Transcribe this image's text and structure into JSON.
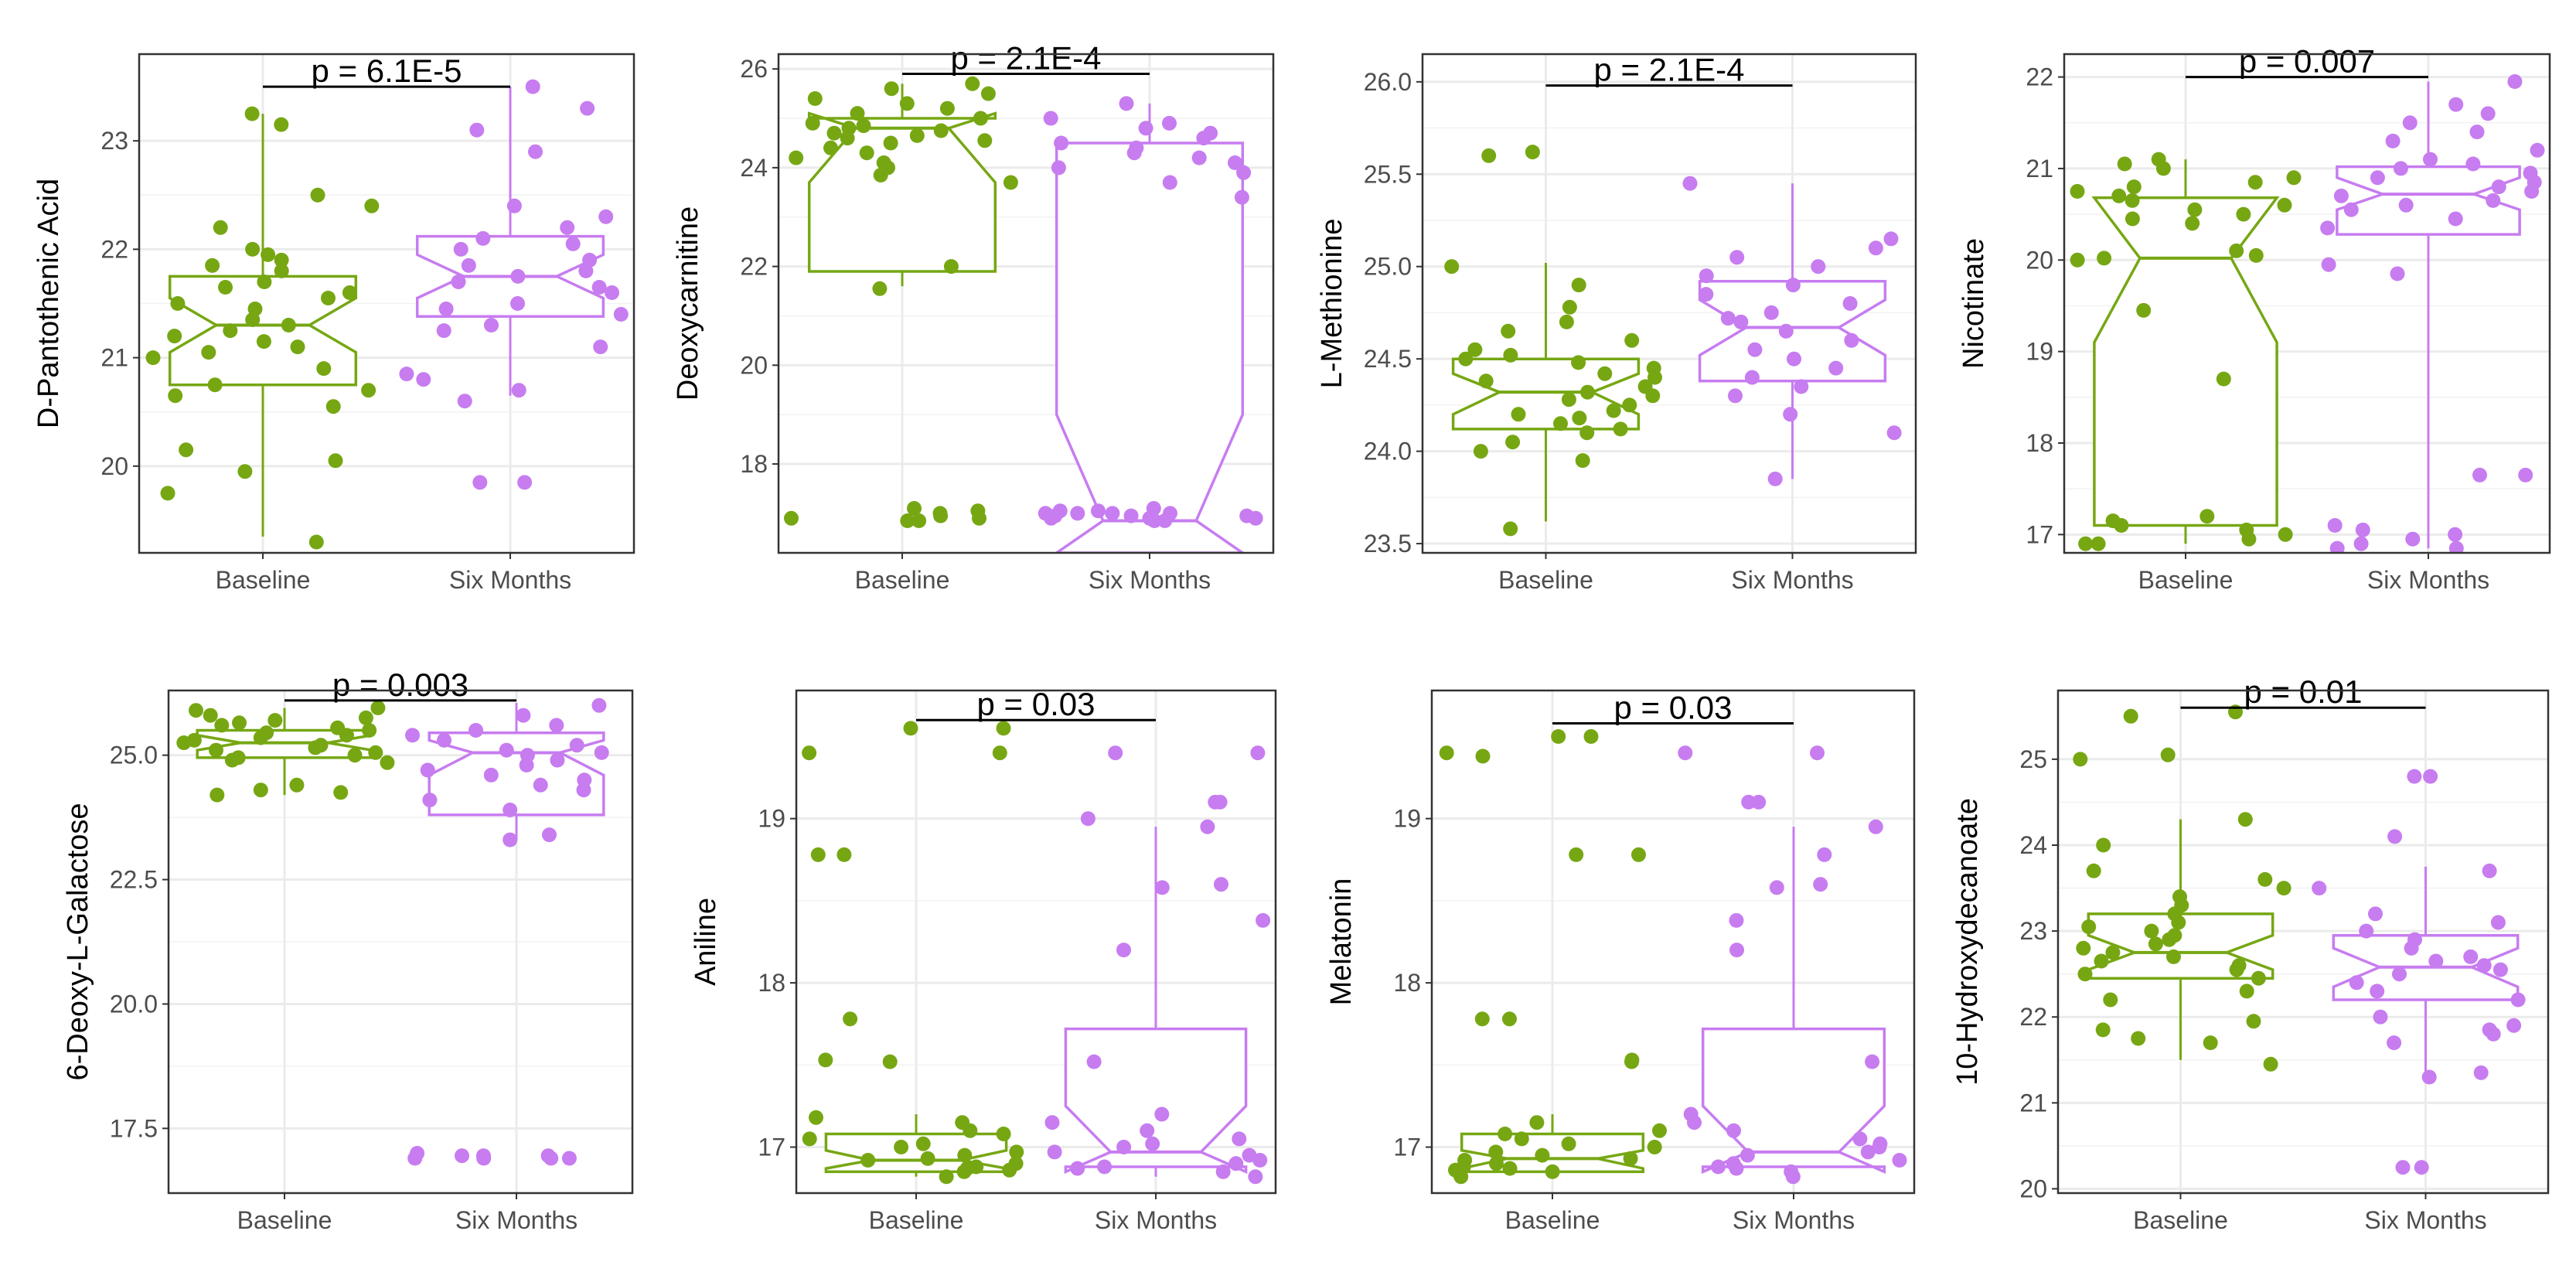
{
  "colors": {
    "baseline": "#76a713",
    "six_months": "#c77cf0",
    "grid": "#ebebeb",
    "frame": "#333333",
    "tick_text": "#4d4d4d"
  },
  "chart_data": [
    {
      "type": "boxplot",
      "title": "",
      "ylabel": "D-Pantothenic Acid",
      "xlabel": "",
      "categories": [
        "Baseline",
        "Six Months"
      ],
      "ylim": [
        19.2,
        23.8
      ],
      "yticks": [
        20,
        21,
        22,
        23
      ],
      "tick_labels": [
        "20",
        "21",
        "22",
        "23"
      ],
      "pvalue_label": "p = 6.1E-5",
      "pvalue_y": 23.5,
      "boxes": [
        {
          "name": "Baseline",
          "whisker_low": 19.35,
          "q1": 20.75,
          "median": 21.3,
          "q3": 21.75,
          "whisker_high": 23.25,
          "notch_low": 21.05,
          "notch_high": 21.55
        },
        {
          "name": "Six Months",
          "whisker_low": 20.65,
          "q1": 21.38,
          "median": 21.75,
          "q3": 22.12,
          "whisker_high": 23.5,
          "notch_low": 21.55,
          "notch_high": 21.95
        }
      ],
      "points": [
        {
          "group": "Baseline",
          "values": [
            19.3,
            19.75,
            19.95,
            20.05,
            20.15,
            20.55,
            20.65,
            20.7,
            20.75,
            20.9,
            21.0,
            21.05,
            21.1,
            21.15,
            21.2,
            21.25,
            21.3,
            21.35,
            21.45,
            21.5,
            21.55,
            21.6,
            21.65,
            21.7,
            21.8,
            21.85,
            21.9,
            21.95,
            22.0,
            22.2,
            22.4,
            22.5,
            23.15,
            23.25
          ]
        },
        {
          "group": "Six Months",
          "values": [
            19.85,
            19.85,
            20.6,
            20.7,
            20.8,
            20.85,
            21.1,
            21.25,
            21.3,
            21.4,
            21.45,
            21.5,
            21.6,
            21.65,
            21.7,
            21.75,
            21.8,
            21.85,
            21.9,
            22.0,
            22.05,
            22.1,
            22.2,
            22.3,
            22.4,
            22.9,
            23.1,
            23.3,
            23.5
          ]
        }
      ]
    },
    {
      "type": "boxplot",
      "title": "",
      "ylabel": "Deoxycarnitine",
      "xlabel": "",
      "categories": [
        "Baseline",
        "Six Months"
      ],
      "ylim": [
        16.2,
        26.3
      ],
      "yticks": [
        18,
        20,
        22,
        24,
        26
      ],
      "tick_labels": [
        "18",
        "20",
        "22",
        "24",
        "26"
      ],
      "pvalue_label": "p = 2.1E-4",
      "pvalue_y": 25.9,
      "boxes": [
        {
          "name": "Baseline",
          "whisker_low": 21.6,
          "q1": 21.9,
          "median": 24.8,
          "q3": 25.0,
          "whisker_high": 25.7,
          "notch_low": 23.7,
          "notch_high": 25.1
        },
        {
          "name": "Six Months",
          "whisker_low": 16.2,
          "q1": 16.2,
          "median": 16.85,
          "q3": 24.5,
          "whisker_high": 25.3,
          "notch_low": 16.2,
          "notch_high": 19.0
        }
      ],
      "points": [
        {
          "group": "Baseline",
          "values": [
            16.85,
            16.85,
            16.9,
            16.9,
            16.95,
            17.0,
            17.05,
            17.1,
            21.55,
            22.0,
            23.7,
            23.85,
            24.0,
            24.1,
            24.2,
            24.3,
            24.4,
            24.5,
            24.55,
            24.6,
            24.65,
            24.7,
            24.75,
            24.8,
            24.85,
            24.9,
            25.0,
            25.1,
            25.2,
            25.3,
            25.4,
            25.5,
            25.6,
            25.7
          ]
        },
        {
          "group": "Six Months",
          "values": [
            16.85,
            16.85,
            16.9,
            16.9,
            16.9,
            16.95,
            16.95,
            16.95,
            17.0,
            17.0,
            17.0,
            17.0,
            17.05,
            17.05,
            17.1,
            23.4,
            23.7,
            23.9,
            24.0,
            24.1,
            24.2,
            24.3,
            24.4,
            24.5,
            24.6,
            24.7,
            24.8,
            24.9,
            25.0,
            25.3
          ]
        }
      ]
    },
    {
      "type": "boxplot",
      "title": "",
      "ylabel": "L-Methionine",
      "xlabel": "",
      "categories": [
        "Baseline",
        "Six Months"
      ],
      "ylim": [
        23.45,
        26.15
      ],
      "yticks": [
        23.5,
        24.0,
        24.5,
        25.0,
        25.5,
        26.0
      ],
      "tick_labels": [
        "23.5",
        "24.0",
        "24.5",
        "25.0",
        "25.5",
        "26.0"
      ],
      "pvalue_label": "p = 2.1E-4",
      "pvalue_y": 25.98,
      "boxes": [
        {
          "name": "Baseline",
          "whisker_low": 23.62,
          "q1": 24.12,
          "median": 24.32,
          "q3": 24.5,
          "whisker_high": 25.02,
          "notch_low": 24.2,
          "notch_high": 24.42
        },
        {
          "name": "Six Months",
          "whisker_low": 23.85,
          "q1": 24.38,
          "median": 24.67,
          "q3": 24.92,
          "whisker_high": 25.45,
          "notch_low": 24.52,
          "notch_high": 24.82
        }
      ],
      "points": [
        {
          "group": "Baseline",
          "values": [
            23.58,
            23.95,
            24.0,
            24.05,
            24.1,
            24.12,
            24.15,
            24.18,
            24.2,
            24.22,
            24.25,
            24.28,
            24.3,
            24.32,
            24.35,
            24.38,
            24.4,
            24.42,
            24.45,
            24.48,
            24.5,
            24.52,
            24.55,
            24.6,
            24.65,
            24.7,
            24.78,
            24.9,
            25.0,
            25.6,
            25.62
          ]
        },
        {
          "group": "Six Months",
          "values": [
            23.85,
            24.1,
            24.2,
            24.3,
            24.35,
            24.4,
            24.45,
            24.5,
            24.55,
            24.6,
            24.65,
            24.7,
            24.72,
            24.75,
            24.8,
            24.85,
            24.9,
            24.95,
            25.0,
            25.05,
            25.1,
            25.15,
            25.45
          ]
        }
      ]
    },
    {
      "type": "boxplot",
      "title": "",
      "ylabel": "Nicotinate",
      "xlabel": "",
      "categories": [
        "Baseline",
        "Six Months"
      ],
      "ylim": [
        16.8,
        22.25
      ],
      "yticks": [
        17,
        18,
        19,
        20,
        21,
        22
      ],
      "tick_labels": [
        "17",
        "18",
        "19",
        "20",
        "21",
        "22"
      ],
      "pvalue_label": "p = 0.007",
      "pvalue_y": 22.0,
      "boxes": [
        {
          "name": "Baseline",
          "whisker_low": 16.9,
          "q1": 17.1,
          "median": 20.02,
          "q3": 20.68,
          "whisker_high": 21.1,
          "notch_low": 19.1,
          "notch_high": 20.68
        },
        {
          "name": "Six Months",
          "whisker_low": 16.85,
          "q1": 20.28,
          "median": 20.72,
          "q3": 21.02,
          "whisker_high": 21.95,
          "notch_low": 20.55,
          "notch_high": 20.9
        }
      ],
      "points": [
        {
          "group": "Baseline",
          "values": [
            16.9,
            16.9,
            16.95,
            17.0,
            17.05,
            17.1,
            17.15,
            17.2,
            18.7,
            19.45,
            20.0,
            20.02,
            20.05,
            20.1,
            20.4,
            20.45,
            20.5,
            20.55,
            20.6,
            20.65,
            20.7,
            20.75,
            20.8,
            20.85,
            20.9,
            21.0,
            21.05,
            21.1
          ]
        },
        {
          "group": "Six Months",
          "values": [
            16.85,
            16.85,
            16.9,
            16.95,
            17.0,
            17.05,
            17.1,
            17.65,
            17.65,
            19.85,
            19.95,
            20.35,
            20.45,
            20.55,
            20.6,
            20.65,
            20.7,
            20.75,
            20.8,
            20.85,
            20.9,
            20.95,
            21.0,
            21.05,
            21.1,
            21.2,
            21.3,
            21.4,
            21.5,
            21.6,
            21.7,
            21.95
          ]
        }
      ]
    },
    {
      "type": "boxplot",
      "title": "",
      "ylabel": "6-Deoxy-L-Galactose",
      "xlabel": "",
      "categories": [
        "Baseline",
        "Six Months"
      ],
      "ylim": [
        16.2,
        26.3
      ],
      "yticks": [
        17.5,
        20.0,
        22.5,
        25.0
      ],
      "tick_labels": [
        "17.5",
        "20.0",
        "22.5",
        "25.0"
      ],
      "pvalue_label": "p = 0.003",
      "pvalue_y": 26.1,
      "boxes": [
        {
          "name": "Baseline",
          "whisker_low": 24.2,
          "q1": 24.95,
          "median": 25.25,
          "q3": 25.5,
          "whisker_high": 25.95,
          "notch_low": 25.1,
          "notch_high": 25.4
        },
        {
          "name": "Six Months",
          "whisker_low": 23.3,
          "q1": 23.8,
          "median": 25.05,
          "q3": 25.45,
          "whisker_high": 26.05,
          "notch_low": 24.6,
          "notch_high": 25.3
        }
      ],
      "points": [
        {
          "group": "Baseline",
          "values": [
            24.2,
            24.25,
            24.3,
            24.4,
            24.85,
            24.9,
            24.95,
            25.0,
            25.05,
            25.1,
            25.15,
            25.2,
            25.25,
            25.3,
            25.35,
            25.4,
            25.45,
            25.5,
            25.55,
            25.6,
            25.65,
            25.7,
            25.75,
            25.8,
            25.9,
            25.95
          ]
        },
        {
          "group": "Six Months",
          "values": [
            16.9,
            16.9,
            16.9,
            16.95,
            16.95,
            16.95,
            17.0,
            16.9,
            23.3,
            23.4,
            23.9,
            24.1,
            24.3,
            24.4,
            24.5,
            24.6,
            24.7,
            24.8,
            24.9,
            25.0,
            25.05,
            25.1,
            25.2,
            25.3,
            25.4,
            25.5,
            25.6,
            25.8,
            26.0
          ]
        }
      ]
    },
    {
      "type": "boxplot",
      "title": "",
      "ylabel": "Aniline",
      "xlabel": "",
      "categories": [
        "Baseline",
        "Six Months"
      ],
      "ylim": [
        16.72,
        19.78
      ],
      "yticks": [
        17,
        18,
        19
      ],
      "tick_labels": [
        "17",
        "18",
        "19"
      ],
      "pvalue_label": "p = 0.03",
      "pvalue_y": 19.6,
      "boxes": [
        {
          "name": "Baseline",
          "whisker_low": 16.82,
          "q1": 16.85,
          "median": 16.92,
          "q3": 17.08,
          "whisker_high": 17.2,
          "notch_low": 16.87,
          "notch_high": 16.98
        },
        {
          "name": "Six Months",
          "whisker_low": 16.82,
          "q1": 16.88,
          "median": 16.97,
          "q3": 17.72,
          "whisker_high": 18.95,
          "notch_low": 16.85,
          "notch_high": 17.25
        }
      ],
      "points": [
        {
          "group": "Baseline",
          "values": [
            16.82,
            16.85,
            16.86,
            16.87,
            16.88,
            16.9,
            16.92,
            16.93,
            16.95,
            16.97,
            17.0,
            17.02,
            17.05,
            17.08,
            17.1,
            17.15,
            17.18,
            17.52,
            17.53,
            17.78,
            18.78,
            18.78,
            19.4,
            19.4,
            19.55,
            19.55
          ]
        },
        {
          "group": "Six Months",
          "values": [
            16.82,
            16.85,
            16.87,
            16.88,
            16.9,
            16.92,
            16.95,
            16.97,
            17.0,
            17.02,
            17.05,
            17.1,
            17.15,
            17.2,
            17.52,
            18.2,
            18.38,
            18.58,
            18.6,
            18.95,
            19.0,
            19.1,
            19.1,
            19.4,
            19.4
          ]
        }
      ]
    },
    {
      "type": "boxplot",
      "title": "",
      "ylabel": "Melatonin",
      "xlabel": "",
      "categories": [
        "Baseline",
        "Six Months"
      ],
      "ylim": [
        16.72,
        19.78
      ],
      "yticks": [
        17,
        18,
        19
      ],
      "tick_labels": [
        "17",
        "18",
        "19"
      ],
      "pvalue_label": "p = 0.03",
      "pvalue_y": 19.58,
      "boxes": [
        {
          "name": "Baseline",
          "whisker_low": 16.82,
          "q1": 16.85,
          "median": 16.93,
          "q3": 17.08,
          "whisker_high": 17.2,
          "notch_low": 16.87,
          "notch_high": 16.98
        },
        {
          "name": "Six Months",
          "whisker_low": 16.82,
          "q1": 16.88,
          "median": 16.97,
          "q3": 17.72,
          "whisker_high": 18.95,
          "notch_low": 16.85,
          "notch_high": 17.25
        }
      ],
      "points": [
        {
          "group": "Baseline",
          "values": [
            16.82,
            16.85,
            16.86,
            16.87,
            16.88,
            16.9,
            16.92,
            16.93,
            16.95,
            16.97,
            17.0,
            17.02,
            17.05,
            17.08,
            17.1,
            17.15,
            17.52,
            17.53,
            17.78,
            17.78,
            18.78,
            18.78,
            19.38,
            19.4,
            19.5,
            19.5
          ]
        },
        {
          "group": "Six Months",
          "values": [
            16.82,
            16.85,
            16.87,
            16.88,
            16.9,
            16.92,
            16.95,
            16.97,
            17.0,
            17.02,
            17.05,
            17.1,
            17.15,
            17.2,
            17.52,
            18.2,
            18.38,
            18.58,
            18.6,
            18.78,
            18.95,
            19.1,
            19.1,
            19.4,
            19.4
          ]
        }
      ]
    },
    {
      "type": "boxplot",
      "title": "",
      "ylabel": "10-Hydroxydecanoate",
      "xlabel": "",
      "categories": [
        "Baseline",
        "Six Months"
      ],
      "ylim": [
        19.95,
        25.8
      ],
      "yticks": [
        20,
        21,
        22,
        23,
        24,
        25
      ],
      "tick_labels": [
        "20",
        "21",
        "22",
        "23",
        "24",
        "25"
      ],
      "pvalue_label": "p = 0.01",
      "pvalue_y": 25.6,
      "boxes": [
        {
          "name": "Baseline",
          "whisker_low": 21.5,
          "q1": 22.45,
          "median": 22.75,
          "q3": 23.2,
          "whisker_high": 24.3,
          "notch_low": 22.55,
          "notch_high": 22.95
        },
        {
          "name": "Six Months",
          "whisker_low": 21.3,
          "q1": 22.2,
          "median": 22.58,
          "q3": 22.95,
          "whisker_high": 23.75,
          "notch_low": 22.35,
          "notch_high": 22.8
        }
      ],
      "points": [
        {
          "group": "Baseline",
          "values": [
            21.45,
            21.7,
            21.75,
            21.85,
            21.95,
            22.2,
            22.3,
            22.45,
            22.5,
            22.55,
            22.6,
            22.65,
            22.7,
            22.75,
            22.8,
            22.85,
            22.9,
            22.95,
            23.0,
            23.05,
            23.1,
            23.2,
            23.3,
            23.4,
            23.5,
            23.6,
            23.7,
            24.0,
            24.3,
            25.0,
            25.05,
            25.5,
            25.55
          ]
        },
        {
          "group": "Six Months",
          "values": [
            20.25,
            20.25,
            21.3,
            21.35,
            21.7,
            21.8,
            21.85,
            21.9,
            22.0,
            22.2,
            22.3,
            22.4,
            22.5,
            22.55,
            22.6,
            22.65,
            22.7,
            22.8,
            22.9,
            23.0,
            23.1,
            23.2,
            23.5,
            23.7,
            24.1,
            24.8,
            24.8
          ]
        }
      ]
    }
  ]
}
